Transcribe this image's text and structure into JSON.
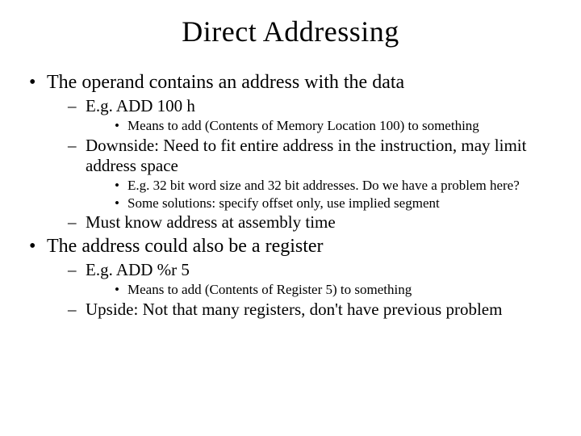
{
  "title": "Direct Addressing",
  "bullets": {
    "b1": "The operand contains an address with the data",
    "b1_1": "E.g. ADD 100 h",
    "b1_1_1": "Means to add (Contents of Memory Location 100) to something",
    "b1_2": "Downside: Need to fit entire address in the instruction, may limit address space",
    "b1_2_1": "E.g. 32 bit word size and 32 bit addresses.  Do we have a problem here?",
    "b1_2_2": "Some solutions: specify offset only, use implied segment",
    "b1_3": "Must know address at assembly time",
    "b2": "The address could also be a register",
    "b2_1": "E.g.  ADD %r 5",
    "b2_1_1": "Means to add (Contents of Register 5) to something",
    "b2_2": "Upside:  Not that many registers, don't have previous problem"
  },
  "style": {
    "background_color": "#ffffff",
    "text_color": "#000000",
    "font_family": "Times New Roman",
    "title_fontsize": 36,
    "lvl1_fontsize": 24,
    "lvl2_fontsize": 21,
    "lvl3_fontsize": 17,
    "slide_width": 720,
    "slide_height": 540,
    "lvl1_marker": "•",
    "lvl2_marker": "–",
    "lvl3_marker": "•"
  }
}
